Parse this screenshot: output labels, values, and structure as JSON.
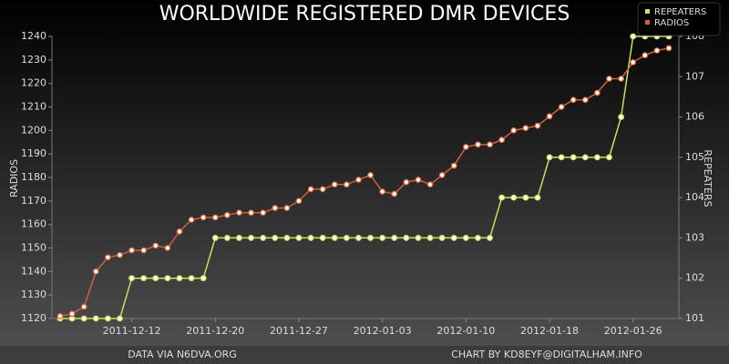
{
  "chart_data": {
    "type": "line",
    "title": "WORLDWIDE REGISTERED DMR DEVICES",
    "y_label": "RADIOS",
    "y2_label": "REPEATERS",
    "source": "DATA VIA N6DVA.ORG",
    "credit": "CHART BY KD8EYF@DIGITALHAM.INFO",
    "legend": "top-right",
    "categories": [
      null,
      null,
      null,
      null,
      null,
      null,
      "2011-12-12",
      null,
      null,
      null,
      null,
      null,
      null,
      "2011-12-20",
      null,
      null,
      null,
      null,
      null,
      null,
      "2011-12-27",
      null,
      null,
      null,
      null,
      null,
      null,
      "2012-01-03",
      null,
      null,
      null,
      null,
      null,
      null,
      "2012-01-10",
      null,
      null,
      null,
      null,
      null,
      null,
      "2012-01-18",
      null,
      null,
      null,
      null,
      null,
      null,
      "2012-01-26",
      null,
      null,
      null
    ],
    "ylim": [
      1120,
      1240
    ],
    "yticks": [
      1120,
      1130,
      1140,
      1150,
      1160,
      1170,
      1180,
      1190,
      1200,
      1210,
      1220,
      1230,
      1240
    ],
    "y2lim": [
      101,
      108
    ],
    "y2ticks": [
      101,
      102,
      103,
      104,
      105,
      106,
      107,
      108
    ],
    "series": [
      {
        "name": "REPEATERS",
        "color": "#c8e05a",
        "axis": "y2",
        "values": [
          101,
          101,
          101,
          101,
          101,
          101,
          102,
          102,
          102,
          102,
          102,
          102,
          102,
          103,
          103,
          103,
          103,
          103,
          103,
          103,
          103,
          103,
          103,
          103,
          103,
          103,
          103,
          103,
          103,
          103,
          103,
          103,
          103,
          103,
          103,
          103,
          103,
          104,
          104,
          104,
          104,
          105,
          105,
          105,
          105,
          105,
          105,
          106,
          108,
          108,
          108,
          108
        ]
      },
      {
        "name": "RADIOS",
        "color": "#d0603c",
        "values": [
          1121,
          1122,
          1125,
          1140,
          1146,
          1147,
          1149,
          1149,
          1151,
          1150,
          1157,
          1162,
          1163,
          1163,
          1164,
          1165,
          1165,
          1165,
          1167,
          1167,
          1170,
          1175,
          1175,
          1177,
          1177,
          1179,
          1181,
          1174,
          1173,
          1178,
          1179,
          1177,
          1181,
          1185,
          1193,
          1194,
          1194,
          1196,
          1200,
          1201,
          1202,
          1206,
          1210,
          1213,
          1213,
          1216,
          1222,
          1222,
          1229,
          1232,
          1234,
          1235
        ]
      }
    ]
  }
}
